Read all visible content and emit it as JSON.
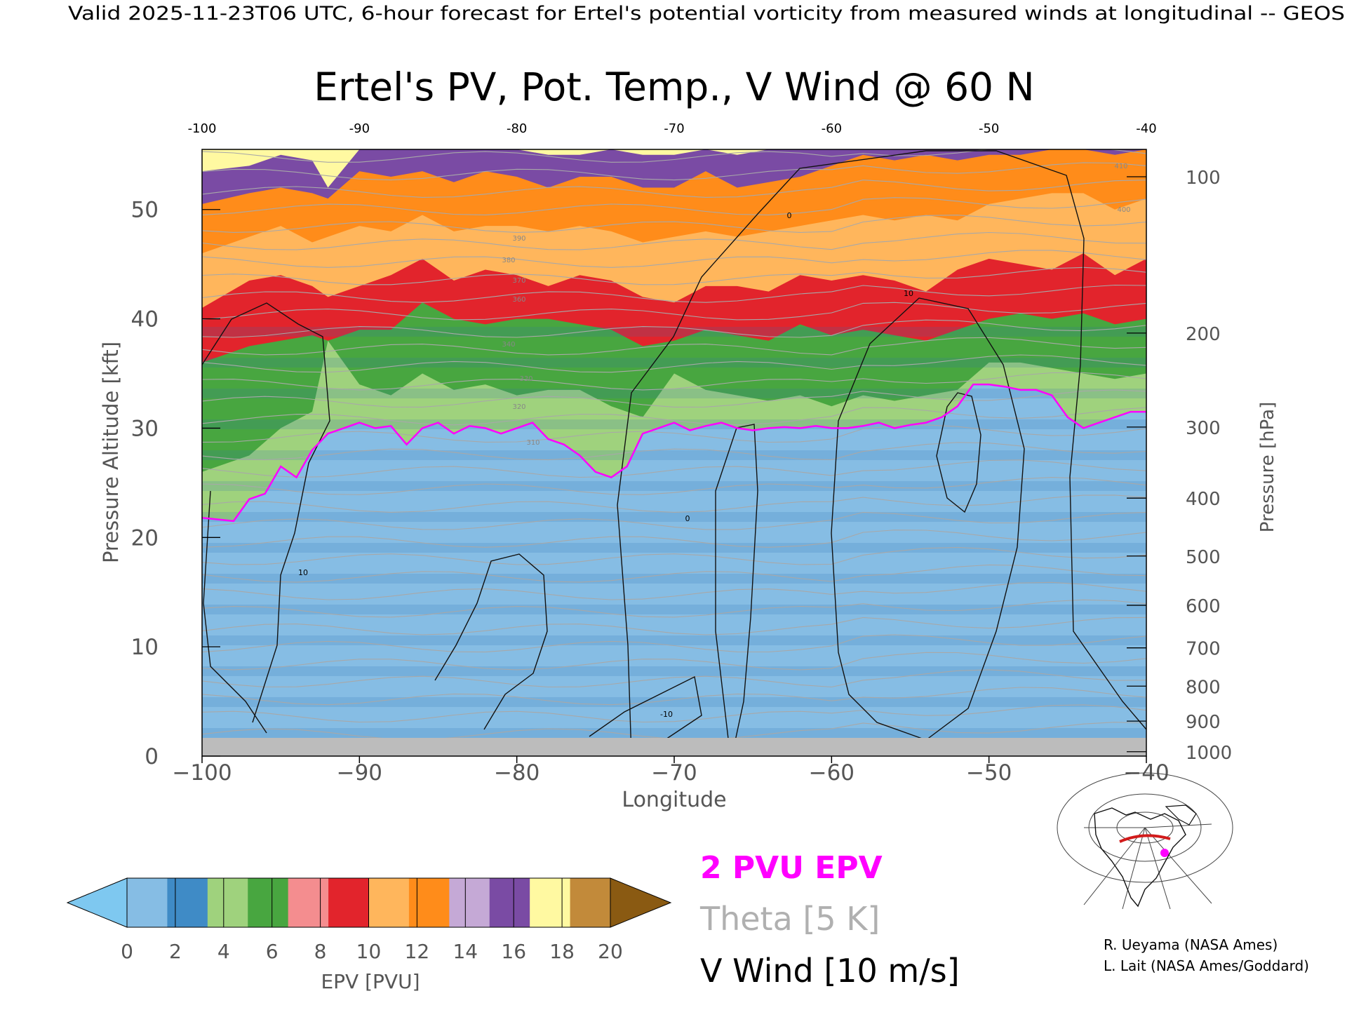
{
  "header": {
    "valid_line": "Valid 2025-11-23T06 UTC, 6-hour forecast for Ertel's potential vorticity from measured winds at longitudinal -- GEOS"
  },
  "chart_data": {
    "type": "heatmap",
    "title": "Ertel's PV, Pot. Temp., V Wind @ 60 N",
    "xlabel": "Longitude",
    "ylabel_left": "Pressure Altitude [kft]",
    "ylabel_right": "Pressure [hPa]",
    "xlim": [
      -100,
      -40
    ],
    "ylim": [
      0,
      55.5
    ],
    "x_ticks": [
      -100,
      -90,
      -80,
      -70,
      -60,
      -50,
      -40
    ],
    "x_tick_labels": [
      "−100",
      "−90",
      "−80",
      "−70",
      "−60",
      "−50",
      "−40"
    ],
    "top_tick_labels": [
      "-100",
      "-90",
      "-80",
      "-70",
      "-60",
      "-50",
      "-40"
    ],
    "y_ticks": [
      0,
      10,
      20,
      30,
      40,
      50
    ],
    "pressure_ticks": [
      {
        "label": "100",
        "kft": 53.0
      },
      {
        "label": "200",
        "kft": 38.7
      },
      {
        "label": "300",
        "kft": 30.1
      },
      {
        "label": "400",
        "kft": 23.6
      },
      {
        "label": "500",
        "kft": 18.3
      },
      {
        "label": "600",
        "kft": 13.8
      },
      {
        "label": "700",
        "kft": 9.9
      },
      {
        "label": "800",
        "kft": 6.4
      },
      {
        "label": "900",
        "kft": 3.2
      },
      {
        "label": "1000",
        "kft": 0.4
      }
    ],
    "tropopause_2pvu": {
      "x": [
        -100,
        -98,
        -97,
        -96,
        -95,
        -94,
        -93,
        -92,
        -91,
        -90,
        -89,
        -88,
        -87,
        -86,
        -85,
        -84,
        -83,
        -82,
        -81,
        -80,
        -79,
        -78,
        -77,
        -76,
        -75,
        -74,
        -73,
        -72,
        -71,
        -70,
        -69,
        -68,
        -67,
        -66,
        -65,
        -64,
        -63,
        -62,
        -61,
        -60,
        -59,
        -58,
        -57,
        -56,
        -55,
        -54,
        -53,
        -52,
        -51,
        -50,
        -49,
        -48,
        -47,
        -46,
        -45,
        -44,
        -43,
        -42,
        -41,
        -40
      ],
      "kft": [
        21.8,
        21.5,
        23.5,
        24.0,
        26.5,
        25.5,
        28.0,
        29.5,
        30.0,
        30.5,
        30.0,
        30.2,
        28.5,
        30.0,
        30.5,
        29.5,
        30.2,
        30.0,
        29.5,
        30.0,
        30.5,
        29.0,
        28.5,
        27.5,
        26.0,
        25.5,
        26.5,
        29.5,
        30.0,
        30.5,
        29.8,
        30.2,
        30.5,
        30.0,
        29.8,
        30.0,
        30.1,
        30.0,
        30.2,
        30.0,
        30.0,
        30.2,
        30.5,
        30.0,
        30.3,
        30.5,
        31.0,
        32.0,
        34.0,
        34.0,
        33.8,
        33.5,
        33.5,
        33.0,
        31.0,
        30.0,
        30.5,
        31.0,
        31.5,
        31.5
      ]
    },
    "epv_layers_kft": {
      "x": [
        -100,
        -97,
        -95,
        -93,
        -92,
        -90,
        -88,
        -86,
        -84,
        -82,
        -80,
        -78,
        -76,
        -74,
        -72,
        -70,
        -68,
        -66,
        -64,
        -62,
        -60,
        -58,
        -56,
        -54,
        -52,
        -50,
        -48,
        -46,
        -44,
        -42,
        -40
      ],
      "pv4": [
        26.0,
        27.5,
        30.0,
        31.5,
        38.0,
        34.0,
        33.0,
        35.0,
        33.5,
        34.0,
        33.0,
        33.5,
        33.5,
        32.0,
        31.0,
        35.0,
        33.5,
        33.0,
        32.5,
        33.0,
        32.0,
        33.0,
        32.5,
        33.0,
        33.5,
        36.0,
        36.0,
        35.5,
        35.0,
        34.5,
        35.0
      ],
      "pv7": [
        36.0,
        37.5,
        38.0,
        38.5,
        38.0,
        39.0,
        39.0,
        41.5,
        40.0,
        39.5,
        40.0,
        40.0,
        39.5,
        39.0,
        37.5,
        38.0,
        39.0,
        38.5,
        38.0,
        39.5,
        38.5,
        39.0,
        38.5,
        38.0,
        39.0,
        40.0,
        40.5,
        40.0,
        40.5,
        39.5,
        40.0
      ],
      "pv10": [
        41.0,
        43.5,
        44.0,
        43.0,
        42.0,
        43.0,
        44.0,
        45.5,
        43.5,
        44.5,
        44.0,
        43.0,
        44.0,
        43.5,
        42.0,
        41.5,
        43.0,
        43.0,
        42.5,
        44.0,
        43.5,
        44.0,
        43.5,
        42.5,
        44.5,
        45.5,
        45.0,
        44.5,
        46.0,
        44.0,
        45.5
      ],
      "pv12": [
        46.0,
        47.5,
        48.5,
        47.0,
        47.5,
        48.5,
        48.0,
        49.5,
        48.0,
        48.5,
        48.5,
        48.0,
        48.5,
        48.0,
        47.0,
        47.5,
        48.0,
        47.5,
        48.0,
        48.5,
        49.0,
        49.5,
        49.0,
        49.5,
        49.0,
        50.5,
        51.0,
        51.5,
        51.5,
        50.0,
        51.0
      ],
      "pv14": [
        50.5,
        51.5,
        52.0,
        51.5,
        51.0,
        53.5,
        53.0,
        53.5,
        52.5,
        53.5,
        53.0,
        52.0,
        53.0,
        53.0,
        52.0,
        52.0,
        53.5,
        52.0,
        52.5,
        53.0,
        54.0,
        55.0,
        54.5,
        55.0,
        54.5,
        55.0,
        55.0,
        55.5,
        55.5,
        55.0,
        55.5
      ],
      "pv16": [
        53.5,
        54.0,
        55.0,
        54.5,
        52.0,
        55.5,
        55.5,
        55.5,
        55.5,
        55.5,
        55.5,
        55.0,
        55.0,
        55.5,
        55.0,
        55.0,
        55.5,
        55.0,
        55.5,
        55.5,
        55.5,
        55.5,
        55.5,
        55.5,
        55.5,
        55.5,
        55.5,
        55.5,
        55.5,
        55.5,
        55.5
      ]
    },
    "theta_contour_labels": [
      "310",
      "320",
      "330",
      "340",
      "350",
      "360",
      "370",
      "380",
      "390",
      "400",
      "410",
      "420"
    ],
    "v_wind_contour_labels": [
      "0",
      "10",
      "-10"
    ],
    "colorbar": {
      "label": "EPV [PVU]",
      "tick_labels": [
        "0",
        "2",
        "4",
        "6",
        "8",
        "10",
        "12",
        "14",
        "16",
        "18",
        "20"
      ],
      "ticks": [
        0,
        2,
        4,
        6,
        8,
        10,
        12,
        14,
        16,
        18,
        20
      ],
      "under_color": "#7ec8f0",
      "over_color": "#8a5a12",
      "colors": [
        "#86bde4",
        "#3f8bc6",
        "#9fd27d",
        "#48a640",
        "#f48d8f",
        "#e2242c",
        "#ffb65c",
        "#ff8c1a",
        "#c5a9d6",
        "#7a4ba4",
        "#fff9a1",
        "#c28a3a"
      ]
    },
    "overlay_legend": {
      "pv_label": "2 PVU EPV",
      "pv_color": "#ff00ff",
      "theta_label": "Theta [5 K]",
      "theta_color": "#b0b0b0",
      "wind_label": "V Wind [10 m/s]",
      "wind_color": "#000000"
    }
  },
  "credits": {
    "line1": "R. Ueyama (NASA Ames)",
    "line2": "L. Lait (NASA Ames/Goddard)"
  }
}
